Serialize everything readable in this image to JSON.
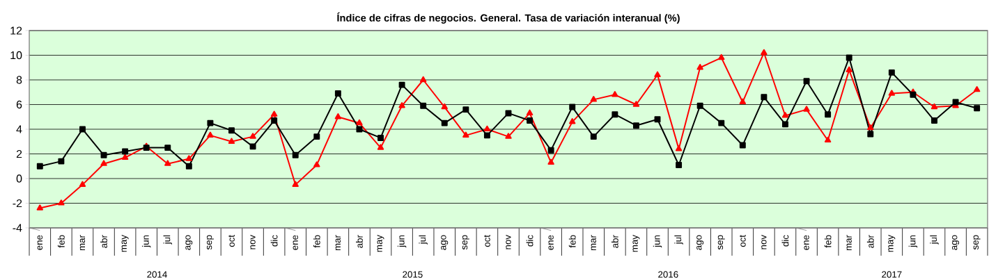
{
  "chart_data": {
    "type": "line",
    "title": "Índice de cifras de negocios. General. Tasa de variación interanual (%)",
    "categories": [
      "ene",
      "feb",
      "mar",
      "abr",
      "may",
      "jun",
      "jul",
      "ago",
      "sep",
      "oct",
      "nov",
      "dic",
      "ene",
      "feb",
      "mar",
      "abr",
      "may",
      "jun",
      "jul",
      "ago",
      "sep",
      "oct",
      "nov",
      "dic",
      "ene",
      "feb",
      "mar",
      "abr",
      "may",
      "jun",
      "jul",
      "ago",
      "sep",
      "oct",
      "nov",
      "dic",
      "ene",
      "feb",
      "mar",
      "abr",
      "may",
      "jun",
      "jul",
      "ago",
      "sep"
    ],
    "annotations": [
      "2014",
      "2015",
      "2016",
      "2017"
    ],
    "series": [
      {
        "color": "#000000",
        "marker": "square",
        "values": [
          1.0,
          1.4,
          4.0,
          1.9,
          2.2,
          2.5,
          2.5,
          1.0,
          4.5,
          3.9,
          2.6,
          4.7,
          1.9,
          3.4,
          6.9,
          4.0,
          3.3,
          7.6,
          5.9,
          4.5,
          5.6,
          3.5,
          5.3,
          4.7,
          2.3,
          5.8,
          3.4,
          5.2,
          4.3,
          4.8,
          1.1,
          5.9,
          4.5,
          2.7,
          6.6,
          4.4,
          7.9,
          5.2,
          9.8,
          3.6,
          8.6,
          6.8,
          4.7,
          6.2,
          5.7
        ]
      },
      {
        "color": "#ff0000",
        "marker": "triangle",
        "values": [
          -2.4,
          -2.0,
          -0.5,
          1.2,
          1.7,
          2.6,
          1.2,
          1.6,
          3.5,
          3.0,
          3.4,
          5.2,
          -0.5,
          1.1,
          5.0,
          4.5,
          2.5,
          5.9,
          8.0,
          5.8,
          3.5,
          4.0,
          3.4,
          5.3,
          1.3,
          4.6,
          6.4,
          6.8,
          6.0,
          8.4,
          2.4,
          9.0,
          9.8,
          6.2,
          10.2,
          5.1,
          5.6,
          3.1,
          8.8,
          4.1,
          6.9,
          7.0,
          5.8,
          5.9,
          7.2
        ]
      }
    ],
    "ylim": [
      -4,
      12
    ],
    "yticks": [
      -4,
      -2,
      0,
      2,
      4,
      6,
      8,
      10,
      12
    ],
    "grid": "y",
    "line_style": "solid"
  }
}
